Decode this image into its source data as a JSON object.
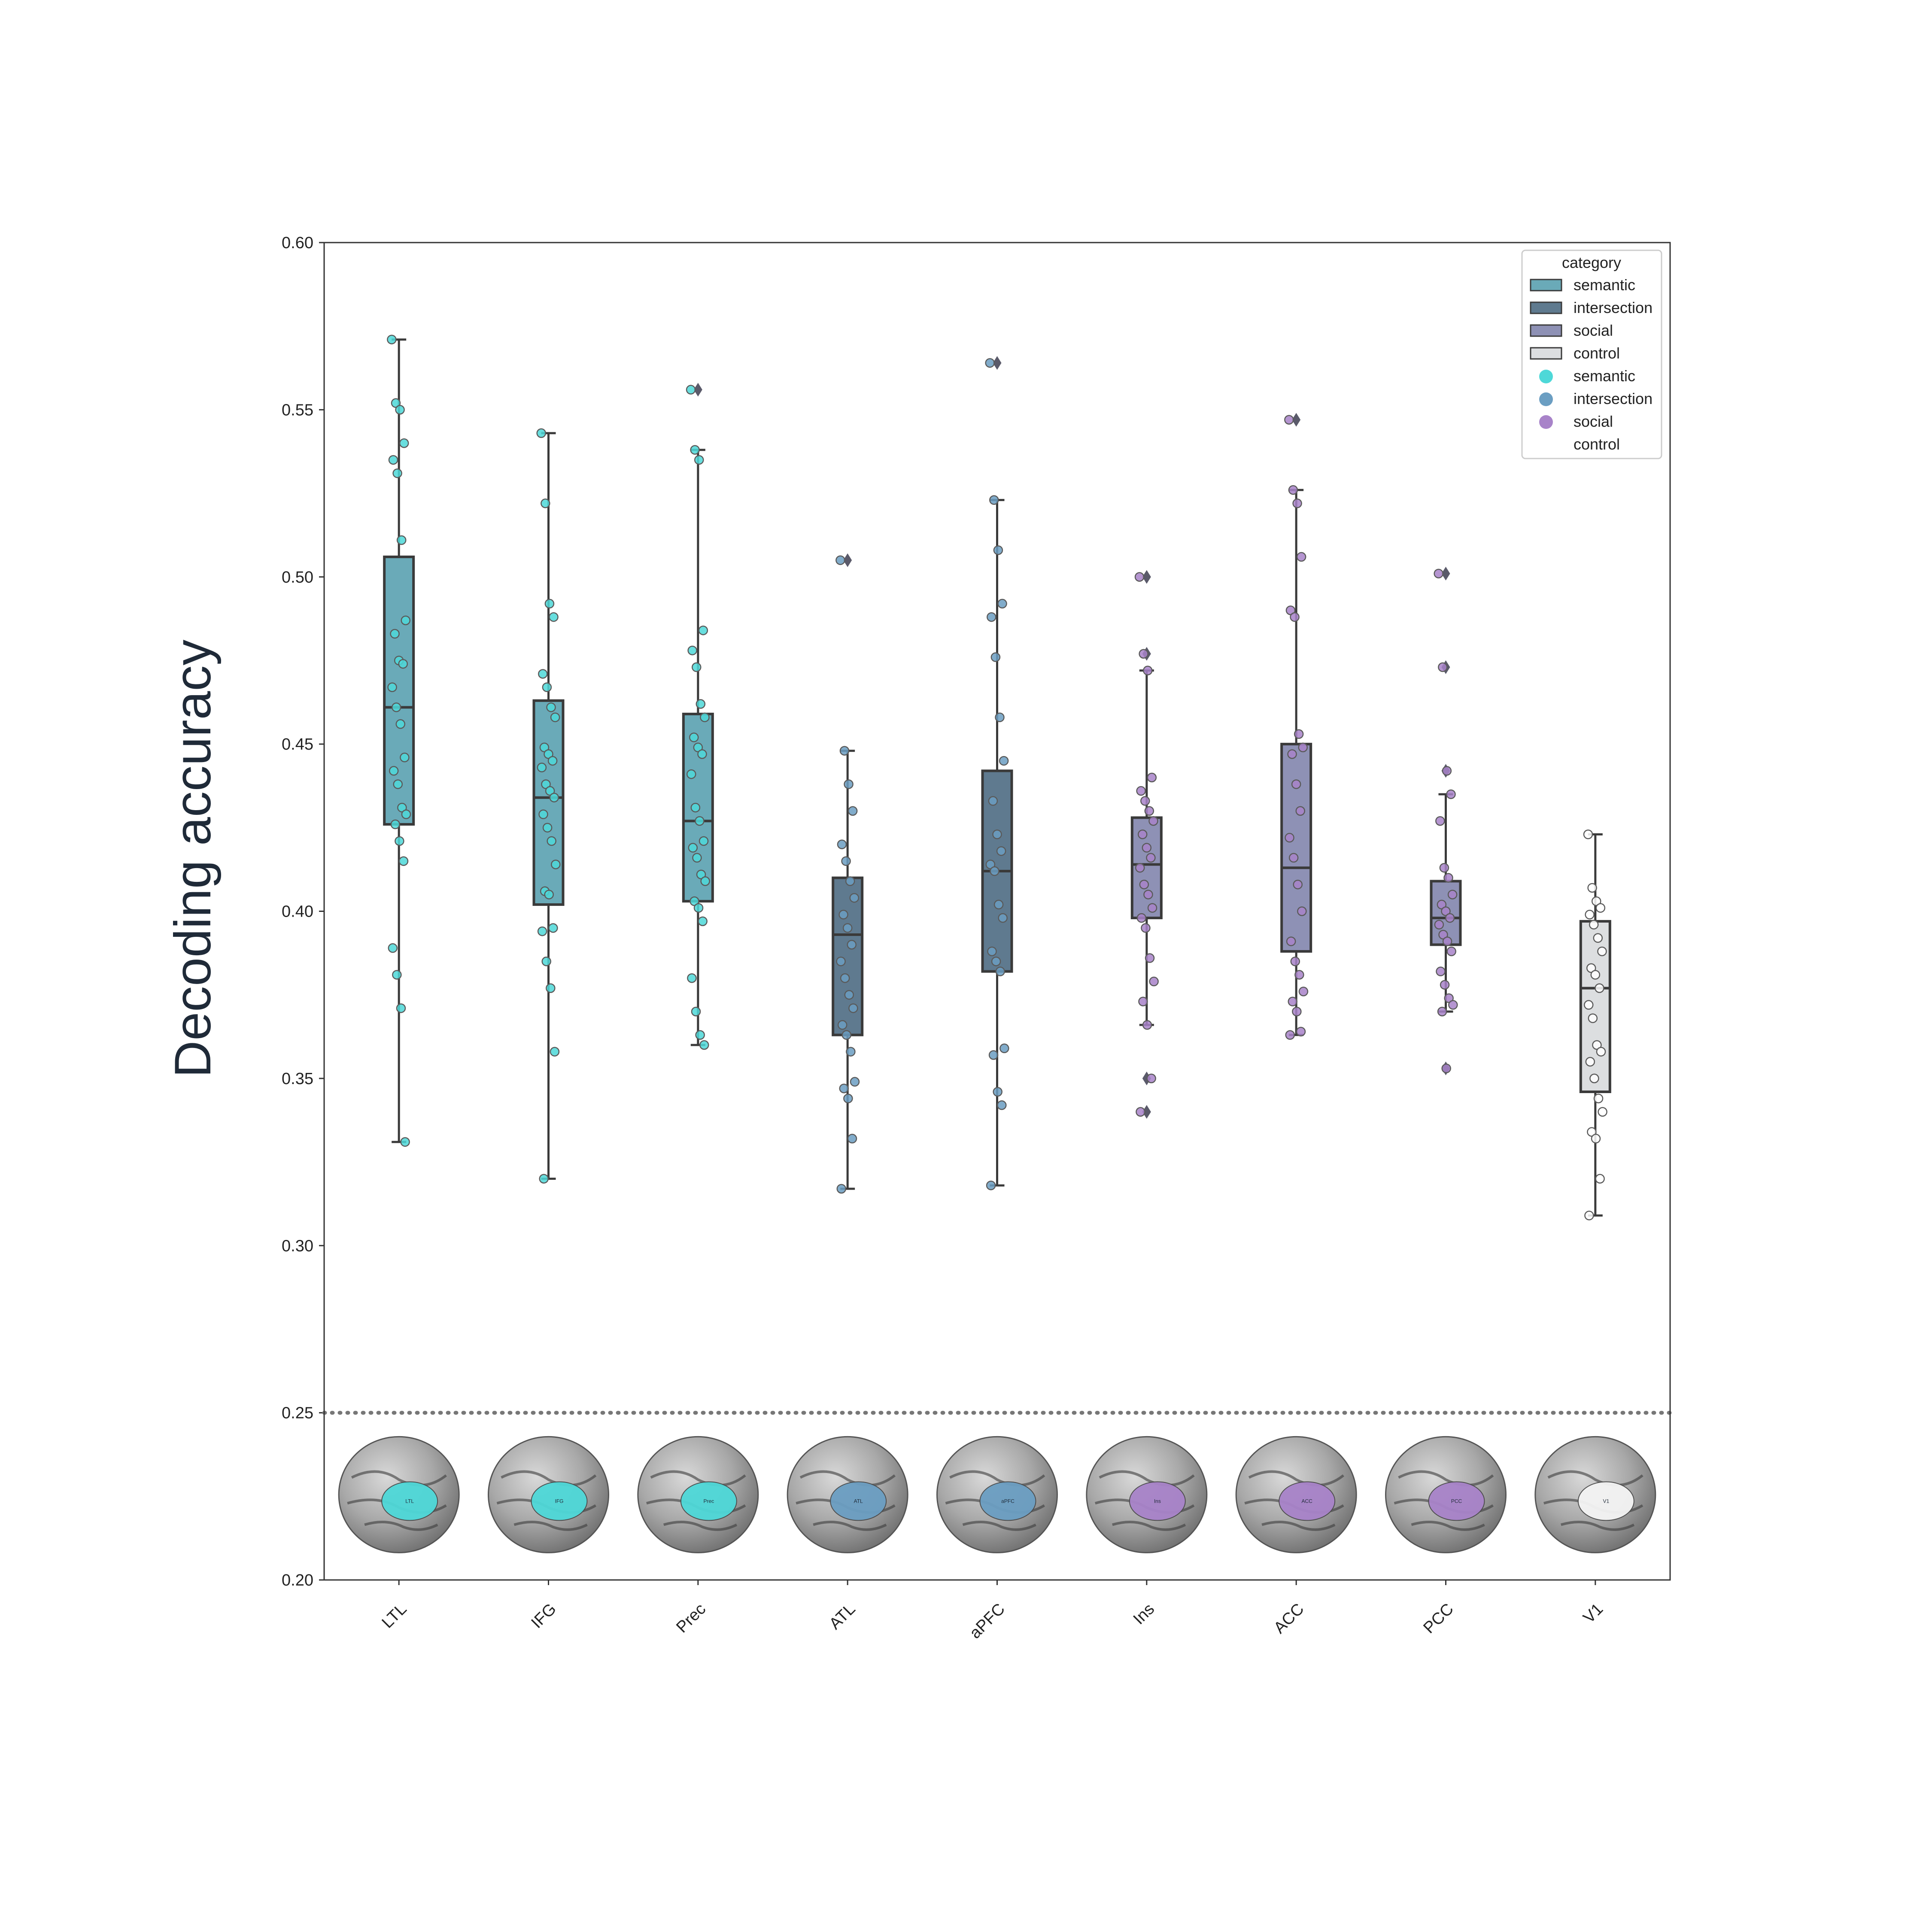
{
  "chart_data": {
    "type": "box",
    "title": "",
    "xlabel": "",
    "ylabel": "Decoding accuracy",
    "ylim": [
      0.2,
      0.6
    ],
    "yticks": [
      "0.20",
      "0.25",
      "0.30",
      "0.35",
      "0.40",
      "0.45",
      "0.50",
      "0.55",
      "0.60"
    ],
    "chance_level": 0.25,
    "grid": false,
    "legend": {
      "title": "category",
      "position": "top-right",
      "box_entries": [
        {
          "label": "semantic",
          "color": "#6aaab8"
        },
        {
          "label": "intersection",
          "color": "#5f7a8f"
        },
        {
          "label": "social",
          "color": "#8e91b5"
        },
        {
          "label": "control",
          "color": "#dcdee0"
        }
      ],
      "point_entries": [
        {
          "label": "semantic",
          "color": "#4ed8d8"
        },
        {
          "label": "intersection",
          "color": "#6b9ec2"
        },
        {
          "label": "social",
          "color": "#a883c9"
        },
        {
          "label": "control",
          "color": "#ffffff"
        }
      ]
    },
    "categories": [
      "LTL",
      "IFG",
      "Prec",
      "ATL",
      "aPFC",
      "Ins",
      "ACC",
      "PCC",
      "V1"
    ],
    "groups": [
      "semantic",
      "semantic",
      "semantic",
      "intersection",
      "intersection",
      "social",
      "social",
      "social",
      "control"
    ],
    "box_colors": [
      "#6aaab8",
      "#6aaab8",
      "#6aaab8",
      "#5f7a8f",
      "#5f7a8f",
      "#8e91b5",
      "#8e91b5",
      "#8e91b5",
      "#dcdee0"
    ],
    "point_colors": [
      "#4ed8d8",
      "#4ed8d8",
      "#4ed8d8",
      "#6b9ec2",
      "#6b9ec2",
      "#a883c9",
      "#a883c9",
      "#a883c9",
      "#ffffff"
    ],
    "boxes": [
      {
        "category": "LTL",
        "whislo": 0.331,
        "q1": 0.426,
        "med": 0.461,
        "q3": 0.506,
        "whishi": 0.571,
        "fliers": [],
        "points": [
          0.571,
          0.552,
          0.55,
          0.54,
          0.535,
          0.531,
          0.511,
          0.487,
          0.483,
          0.475,
          0.474,
          0.467,
          0.461,
          0.456,
          0.446,
          0.442,
          0.438,
          0.431,
          0.429,
          0.426,
          0.421,
          0.415,
          0.389,
          0.381,
          0.371,
          0.331
        ]
      },
      {
        "category": "IFG",
        "whislo": 0.32,
        "q1": 0.402,
        "med": 0.434,
        "q3": 0.463,
        "whishi": 0.543,
        "fliers": [],
        "points": [
          0.543,
          0.522,
          0.492,
          0.488,
          0.471,
          0.467,
          0.461,
          0.458,
          0.449,
          0.447,
          0.445,
          0.443,
          0.438,
          0.436,
          0.434,
          0.429,
          0.425,
          0.421,
          0.414,
          0.406,
          0.405,
          0.395,
          0.394,
          0.385,
          0.377,
          0.358,
          0.32
        ]
      },
      {
        "category": "Prec",
        "whislo": 0.36,
        "q1": 0.403,
        "med": 0.427,
        "q3": 0.459,
        "whishi": 0.538,
        "fliers": [
          0.556
        ],
        "points": [
          0.556,
          0.538,
          0.535,
          0.484,
          0.478,
          0.473,
          0.462,
          0.458,
          0.452,
          0.449,
          0.447,
          0.441,
          0.431,
          0.427,
          0.421,
          0.419,
          0.416,
          0.411,
          0.409,
          0.403,
          0.401,
          0.397,
          0.38,
          0.37,
          0.363,
          0.36
        ]
      },
      {
        "category": "ATL",
        "whislo": 0.317,
        "q1": 0.363,
        "med": 0.393,
        "q3": 0.41,
        "whishi": 0.448,
        "fliers": [
          0.505
        ],
        "points": [
          0.505,
          0.448,
          0.438,
          0.43,
          0.42,
          0.415,
          0.409,
          0.404,
          0.399,
          0.395,
          0.39,
          0.385,
          0.38,
          0.375,
          0.371,
          0.366,
          0.363,
          0.358,
          0.349,
          0.347,
          0.344,
          0.332,
          0.317
        ]
      },
      {
        "category": "aPFC",
        "whislo": 0.318,
        "q1": 0.382,
        "med": 0.412,
        "q3": 0.442,
        "whishi": 0.523,
        "fliers": [
          0.564
        ],
        "points": [
          0.564,
          0.523,
          0.508,
          0.492,
          0.488,
          0.476,
          0.458,
          0.445,
          0.433,
          0.423,
          0.418,
          0.414,
          0.412,
          0.402,
          0.398,
          0.388,
          0.385,
          0.382,
          0.359,
          0.357,
          0.346,
          0.342,
          0.318
        ]
      },
      {
        "category": "Ins",
        "whislo": 0.366,
        "q1": 0.398,
        "med": 0.414,
        "q3": 0.428,
        "whishi": 0.472,
        "fliers": [
          0.5,
          0.477,
          0.35,
          0.34
        ],
        "points": [
          0.5,
          0.477,
          0.472,
          0.44,
          0.436,
          0.433,
          0.43,
          0.427,
          0.423,
          0.419,
          0.416,
          0.413,
          0.408,
          0.405,
          0.401,
          0.398,
          0.395,
          0.386,
          0.379,
          0.373,
          0.366,
          0.35,
          0.34
        ]
      },
      {
        "category": "ACC",
        "whislo": 0.363,
        "q1": 0.388,
        "med": 0.413,
        "q3": 0.45,
        "whishi": 0.526,
        "fliers": [
          0.547
        ],
        "points": [
          0.547,
          0.526,
          0.522,
          0.506,
          0.49,
          0.488,
          0.453,
          0.449,
          0.447,
          0.438,
          0.43,
          0.422,
          0.416,
          0.408,
          0.4,
          0.391,
          0.385,
          0.381,
          0.376,
          0.373,
          0.37,
          0.364,
          0.363
        ]
      },
      {
        "category": "PCC",
        "whislo": 0.37,
        "q1": 0.39,
        "med": 0.398,
        "q3": 0.409,
        "whishi": 0.435,
        "fliers": [
          0.501,
          0.473,
          0.442,
          0.353
        ],
        "points": [
          0.501,
          0.473,
          0.442,
          0.435,
          0.427,
          0.413,
          0.41,
          0.405,
          0.402,
          0.4,
          0.398,
          0.396,
          0.393,
          0.391,
          0.388,
          0.382,
          0.378,
          0.374,
          0.372,
          0.37,
          0.353
        ]
      },
      {
        "category": "V1",
        "whislo": 0.309,
        "q1": 0.346,
        "med": 0.377,
        "q3": 0.397,
        "whishi": 0.423,
        "fliers": [],
        "points": [
          0.423,
          0.407,
          0.403,
          0.401,
          0.399,
          0.396,
          0.392,
          0.388,
          0.383,
          0.381,
          0.377,
          0.372,
          0.368,
          0.36,
          0.358,
          0.355,
          0.35,
          0.344,
          0.34,
          0.334,
          0.332,
          0.32,
          0.309
        ]
      }
    ],
    "region_images": [
      {
        "category": "LTL",
        "label": "LTL",
        "view": "lateral"
      },
      {
        "category": "IFG",
        "label": "IFG",
        "view": "lateral"
      },
      {
        "category": "Prec",
        "label": "Prec",
        "view": "medial"
      },
      {
        "category": "ATL",
        "label": "ATL",
        "view": "ventral"
      },
      {
        "category": "aPFC",
        "label": "aPFC",
        "view": "medial"
      },
      {
        "category": "Ins",
        "label": "Ins",
        "view": "axial"
      },
      {
        "category": "ACC",
        "label": "ACC",
        "view": "medial"
      },
      {
        "category": "PCC",
        "label": "PCC",
        "view": "medial"
      },
      {
        "category": "V1",
        "label": "V1",
        "view": "posterior"
      }
    ]
  }
}
